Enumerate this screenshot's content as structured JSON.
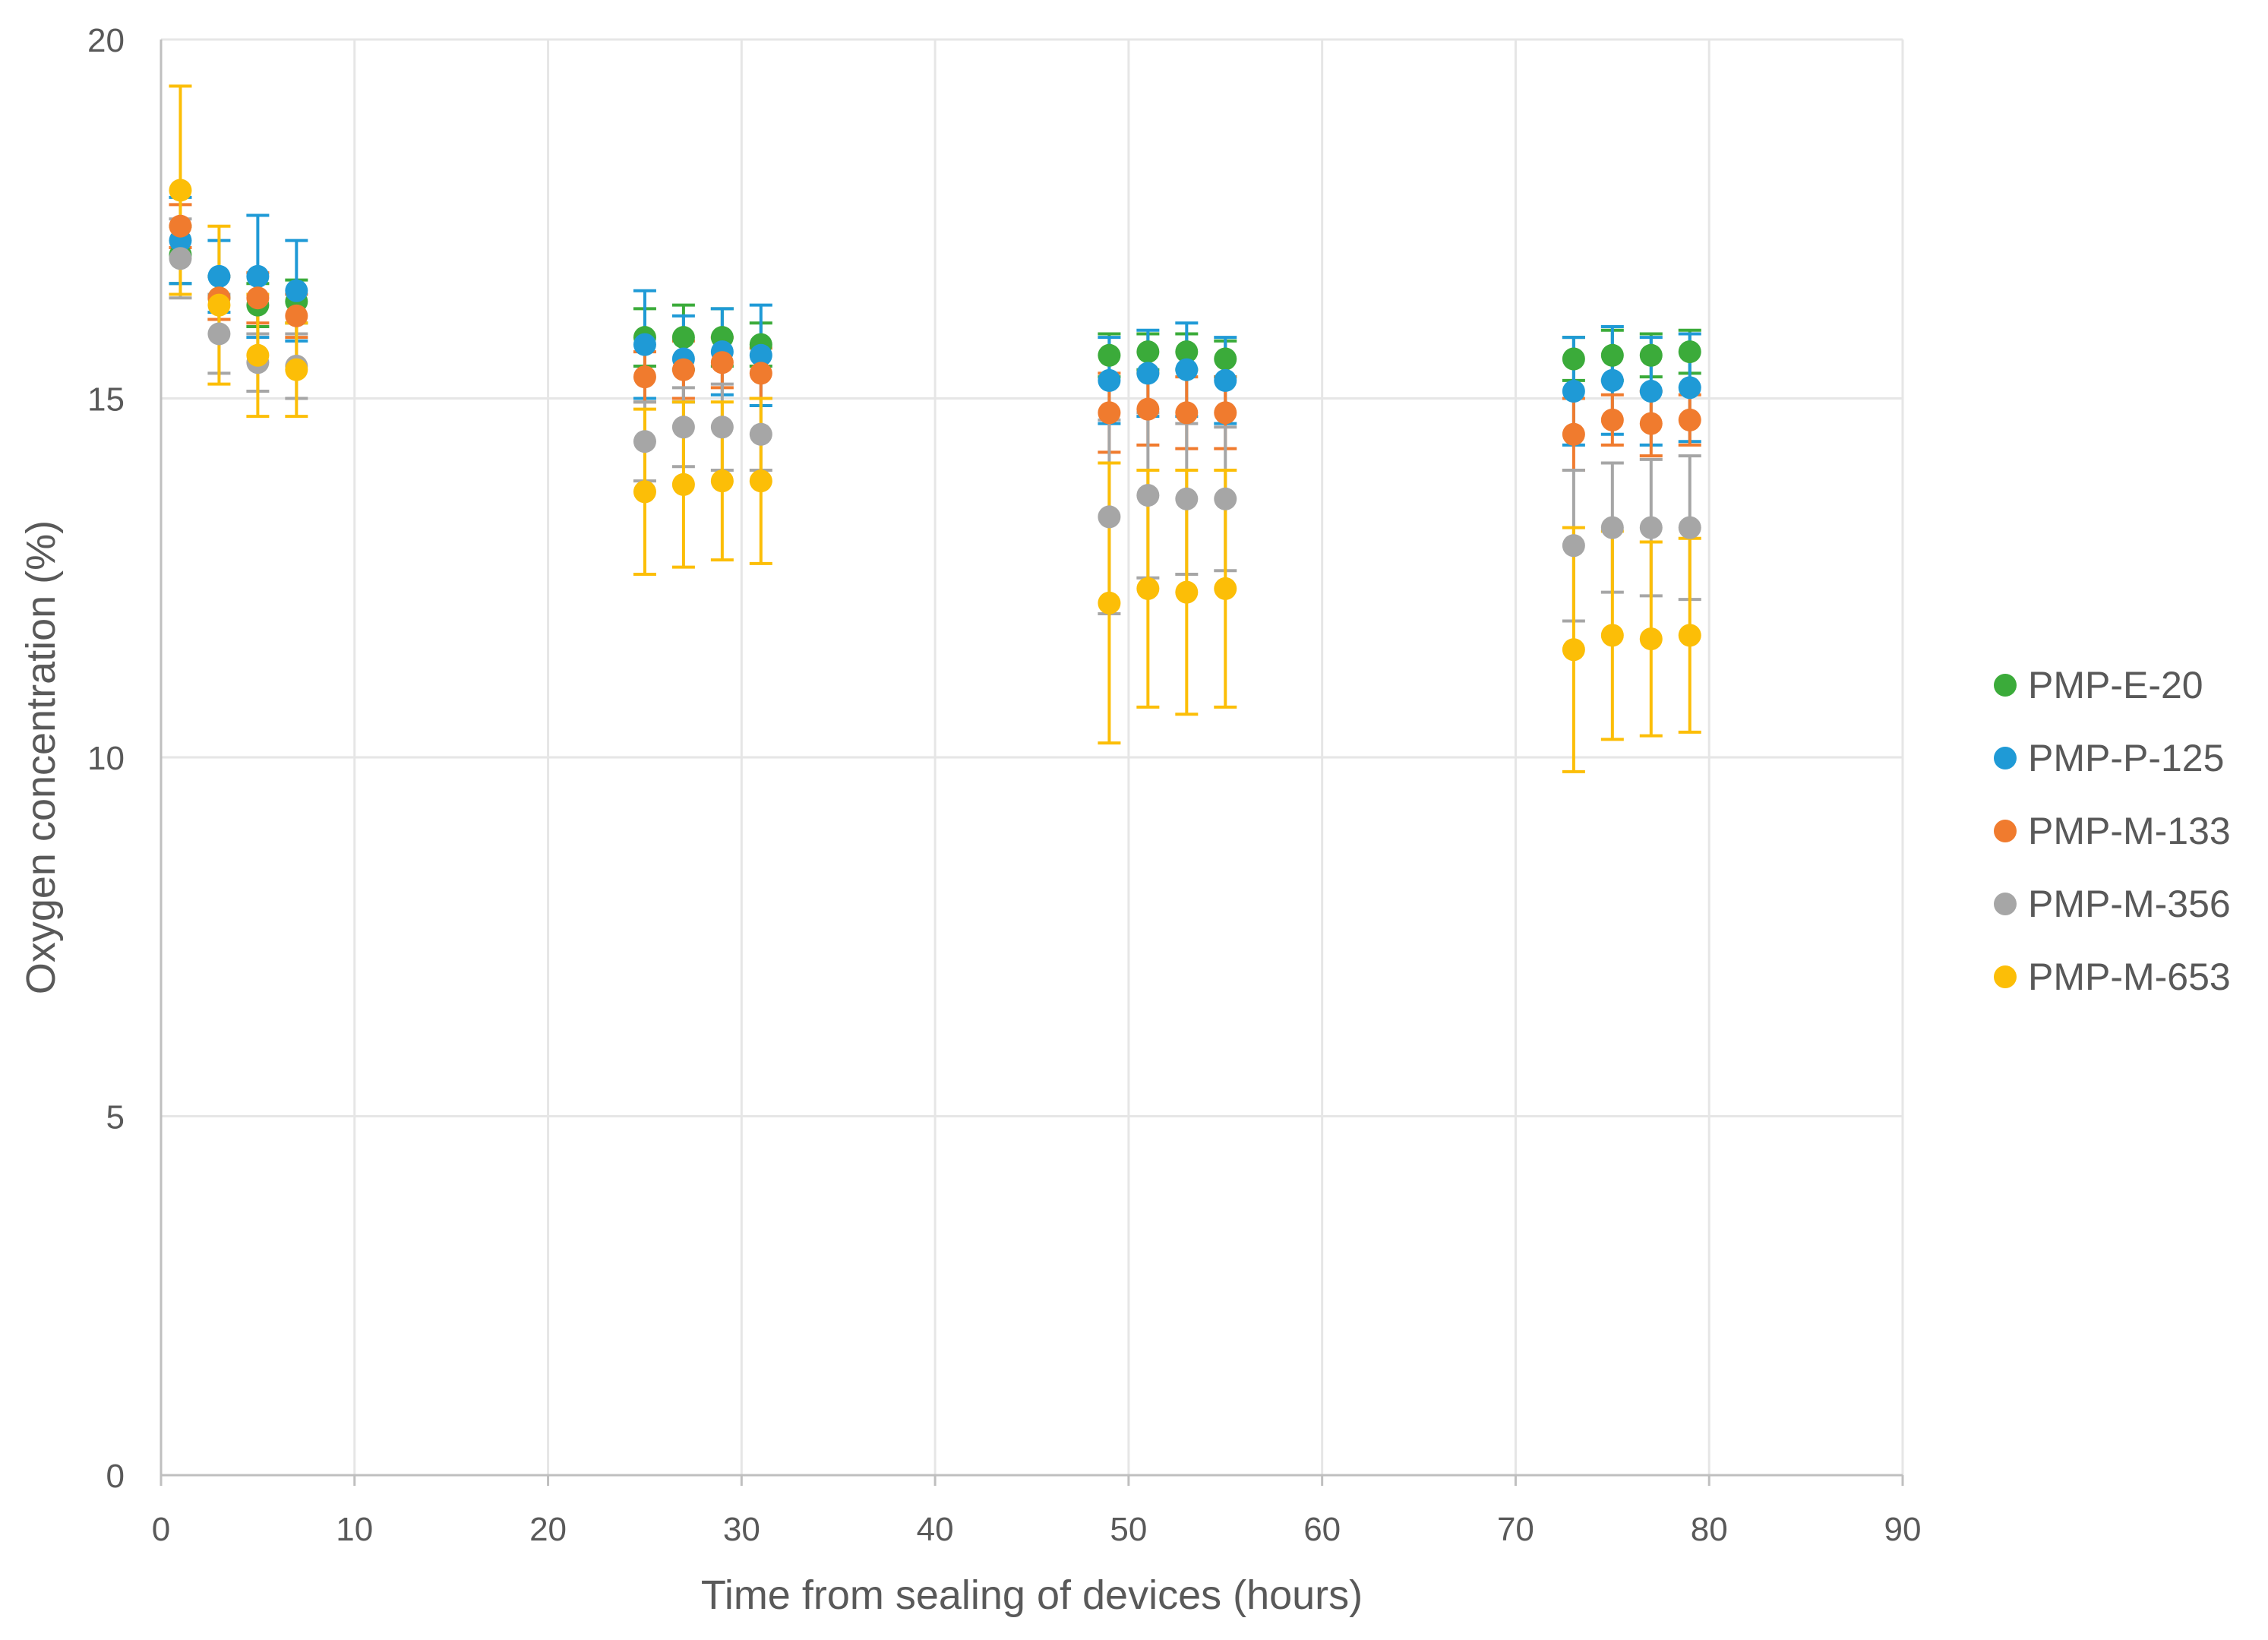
{
  "chart_data": {
    "type": "scatter",
    "title": "",
    "xlabel": "Time from sealing of devices (hours)",
    "ylabel": "Oxygen concentration (%)",
    "xlim": [
      0,
      90
    ],
    "ylim": [
      0,
      20
    ],
    "xticks": [
      0,
      10,
      20,
      30,
      40,
      50,
      60,
      70,
      80,
      90
    ],
    "yticks": [
      0,
      5,
      10,
      15,
      20
    ],
    "xtick_labels": [
      "0",
      "10",
      "20",
      "30",
      "40",
      "50",
      "60",
      "70",
      "80",
      "90"
    ],
    "ytick_labels": [
      "0",
      "5",
      "10",
      "15",
      "20"
    ],
    "grid": true,
    "legend_position": "right",
    "x": [
      1,
      3,
      5,
      7,
      25,
      27,
      29,
      31,
      49,
      51,
      53,
      55,
      73,
      75,
      77,
      79
    ],
    "series": [
      {
        "name": "PMP-E-20",
        "color": "#3bab3a",
        "values": [
          17.0,
          16.4,
          16.3,
          16.35,
          15.85,
          15.85,
          15.85,
          15.75,
          15.6,
          15.65,
          15.65,
          15.55,
          15.55,
          15.6,
          15.6,
          15.65
        ],
        "errors": [
          0.4,
          0.3,
          0.3,
          0.3,
          0.4,
          0.45,
          0.4,
          0.3,
          0.3,
          0.25,
          0.25,
          0.25,
          0.3,
          0.35,
          0.3,
          0.3
        ]
      },
      {
        "name": "PMP-P-125",
        "color": "#1f9ad6",
        "values": [
          17.2,
          16.7,
          16.7,
          16.5,
          15.75,
          15.55,
          15.65,
          15.6,
          15.25,
          15.35,
          15.4,
          15.25,
          15.1,
          15.25,
          15.1,
          15.15
        ],
        "errors": [
          0.6,
          0.5,
          0.85,
          0.7,
          0.75,
          0.6,
          0.6,
          0.7,
          0.6,
          0.6,
          0.65,
          0.6,
          0.75,
          0.75,
          0.75,
          0.75
        ]
      },
      {
        "name": "PMP-M-133",
        "color": "#f07b2e",
        "values": [
          17.4,
          16.4,
          16.4,
          16.15,
          15.3,
          15.4,
          15.5,
          15.35,
          14.8,
          14.85,
          14.8,
          14.8,
          14.5,
          14.7,
          14.65,
          14.7
        ],
        "errors": [
          0.3,
          0.3,
          0.35,
          0.3,
          0.35,
          0.4,
          0.35,
          0.35,
          0.55,
          0.5,
          0.5,
          0.5,
          0.5,
          0.35,
          0.45,
          0.35
        ]
      },
      {
        "name": "PMP-M-356",
        "color": "#a6a6a6",
        "values": [
          16.95,
          15.9,
          15.5,
          15.45,
          14.4,
          14.6,
          14.6,
          14.5,
          13.35,
          13.65,
          13.6,
          13.6,
          12.95,
          13.2,
          13.2,
          13.2
        ],
        "errors": [
          0.55,
          0.55,
          0.4,
          0.45,
          0.55,
          0.55,
          0.6,
          0.5,
          1.35,
          1.15,
          1.05,
          1.0,
          1.05,
          0.9,
          0.95,
          1.0
        ]
      },
      {
        "name": "PMP-M-653",
        "color": "#fcbe07",
        "values": [
          17.9,
          16.3,
          15.6,
          15.4,
          13.7,
          13.8,
          13.85,
          13.85,
          12.15,
          12.35,
          12.3,
          12.35,
          11.5,
          11.7,
          11.65,
          11.7
        ],
        "errors": [
          1.45,
          1.1,
          0.85,
          0.65,
          1.15,
          1.15,
          1.1,
          1.15,
          1.95,
          1.65,
          1.7,
          1.65,
          1.7,
          1.45,
          1.35,
          1.35
        ]
      }
    ]
  }
}
